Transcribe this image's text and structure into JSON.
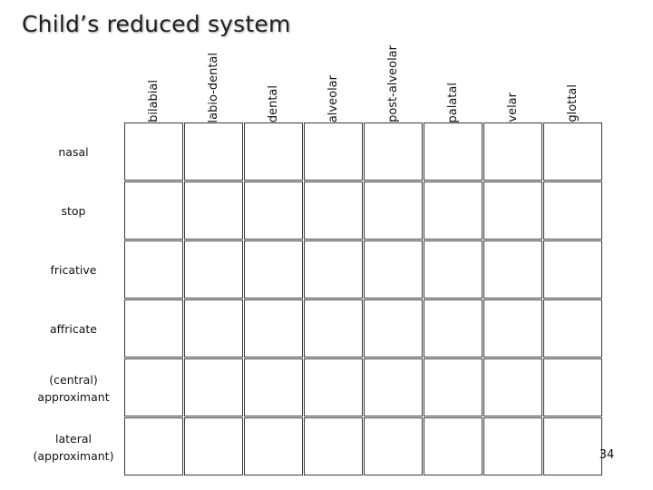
{
  "slide": {
    "title": "Child’s reduced system",
    "page_number": "34"
  },
  "columns": [
    {
      "label": "bilabial"
    },
    {
      "label": "labio-dental"
    },
    {
      "label": "dental"
    },
    {
      "label": "alveolar"
    },
    {
      "label": "post-alveolar"
    },
    {
      "label": "palatal"
    },
    {
      "label": "velar"
    },
    {
      "label": "glottal"
    }
  ],
  "rows": [
    {
      "label": "nasal"
    },
    {
      "label": "stop"
    },
    {
      "label": "fricative"
    },
    {
      "label": "affricate"
    },
    {
      "label": "(central)\napproximant"
    },
    {
      "label": "lateral\n(approximant)"
    }
  ]
}
